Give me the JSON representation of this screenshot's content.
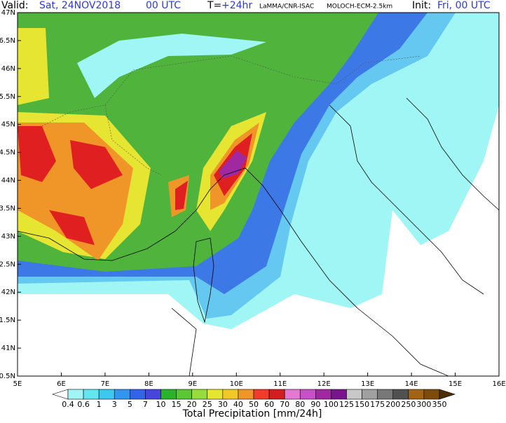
{
  "header": {
    "valid_label": "Valid:",
    "valid_date": "Sat, 24NOV2018",
    "valid_time": "00 UTC",
    "step_label": "T=",
    "step_value": "+24hr",
    "source": "LaMMA/CNR-ISAC",
    "model": "MOLOCH-ECM-2.5km",
    "init_label": "Init:",
    "init_value": "Fri, 00 UTC"
  },
  "map": {
    "lat_labels": [
      "47N",
      "6.5N",
      "46N",
      "5.5N",
      "45N",
      "4.5N",
      "44N",
      "3.5N",
      "43N",
      "2.5N",
      "42N",
      "1.5N",
      "41N",
      "0.5N"
    ],
    "lon_labels": [
      "5E",
      "6E",
      "7E",
      "8E",
      "9E",
      "10E",
      "11E",
      "12E",
      "13E",
      "14E",
      "15E",
      "16E"
    ]
  },
  "colorbar": {
    "title": "Total Precipitation [mm/24h]",
    "labels": [
      "0.4",
      "0.6",
      "1",
      "3",
      "5",
      "7",
      "10",
      "15",
      "20",
      "25",
      "30",
      "40",
      "50",
      "60",
      "70",
      "80",
      "90",
      "100",
      "125",
      "150",
      "175",
      "200",
      "250",
      "300",
      "350"
    ],
    "under_color": "#ffffff",
    "over_color": "#4a2e08",
    "colors": [
      "#a0f5f5",
      "#64e6f0",
      "#3cc8f0",
      "#3296f0",
      "#3264e6",
      "#4646dc",
      "#28b428",
      "#5ac832",
      "#96dc3c",
      "#e6e632",
      "#f0c828",
      "#f09628",
      "#f03c28",
      "#d21e1e",
      "#e678d2",
      "#c850c8",
      "#a028a0",
      "#78148c",
      "#c8c8c8",
      "#a0a0a0",
      "#787878",
      "#505050",
      "#a06414",
      "#7d4b0a"
    ]
  }
}
